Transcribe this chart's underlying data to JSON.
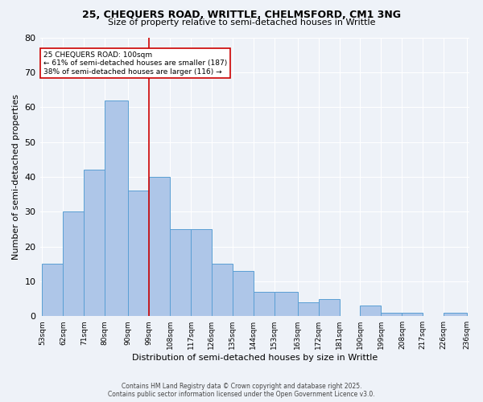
{
  "title1": "25, CHEQUERS ROAD, WRITTLE, CHELMSFORD, CM1 3NG",
  "title2": "Size of property relative to semi-detached houses in Writtle",
  "xlabel": "Distribution of semi-detached houses by size in Writtle",
  "ylabel": "Number of semi-detached properties",
  "bins": [
    53,
    62,
    71,
    80,
    90,
    99,
    108,
    117,
    126,
    135,
    144,
    153,
    163,
    172,
    181,
    190,
    199,
    208,
    217,
    226,
    236
  ],
  "bin_labels": [
    "53sqm",
    "62sqm",
    "71sqm",
    "80sqm",
    "90sqm",
    "99sqm",
    "108sqm",
    "117sqm",
    "126sqm",
    "135sqm",
    "144sqm",
    "153sqm",
    "163sqm",
    "172sqm",
    "181sqm",
    "190sqm",
    "199sqm",
    "208sqm",
    "217sqm",
    "226sqm",
    "236sqm"
  ],
  "counts": [
    15,
    30,
    42,
    62,
    36,
    40,
    25,
    25,
    15,
    13,
    7,
    7,
    4,
    5,
    0,
    3,
    1,
    1,
    0,
    1
  ],
  "bar_color": "#aec6e8",
  "bar_edge_color": "#5a9fd4",
  "vline_x": 99,
  "vline_color": "#cc0000",
  "annotation_title": "25 CHEQUERS ROAD: 100sqm",
  "annotation_line1": "← 61% of semi-detached houses are smaller (187)",
  "annotation_line2": "38% of semi-detached houses are larger (116) →",
  "annotation_box_color": "#cc0000",
  "ylim": [
    0,
    80
  ],
  "yticks": [
    0,
    10,
    20,
    30,
    40,
    50,
    60,
    70,
    80
  ],
  "footer1": "Contains HM Land Registry data © Crown copyright and database right 2025.",
  "footer2": "Contains public sector information licensed under the Open Government Licence v3.0.",
  "bg_color": "#eef2f8",
  "plot_bg_color": "#eef2f8"
}
